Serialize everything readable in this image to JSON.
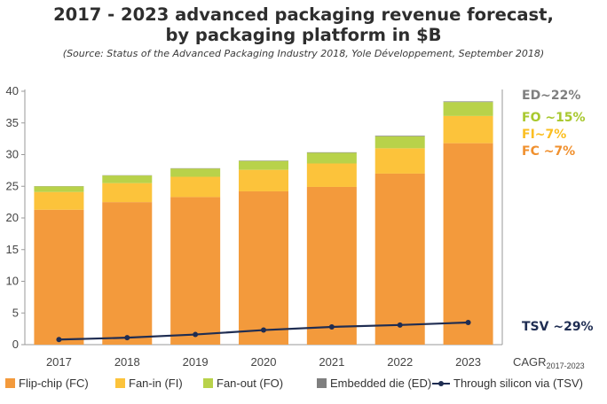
{
  "header": {
    "title_line1": "2017 - 2023 advanced packaging revenue forecast,",
    "title_line2": "by packaging platform in $B",
    "source": "(Source: Status of the Advanced Packaging Industry 2018, Yole Développement, September 2018)"
  },
  "chart_data": {
    "type": "bar",
    "stacked": true,
    "categories": [
      "2017",
      "2018",
      "2019",
      "2020",
      "2021",
      "2022",
      "2023"
    ],
    "ylim": [
      0,
      40
    ],
    "yticks": [
      "0",
      "5",
      "10",
      "15",
      "20",
      "25",
      "30",
      "35",
      "40"
    ],
    "grid": false,
    "xlabel_extra": {
      "text": "CAGR",
      "subscript": "2017-2023"
    },
    "series": [
      {
        "name": "Flip-chip (FC)",
        "kind": "bar",
        "color": "#F39A3C",
        "values": [
          21.3,
          22.5,
          23.3,
          24.2,
          24.9,
          27.0,
          31.8
        ]
      },
      {
        "name": "Fan-in (FI)",
        "kind": "bar",
        "color": "#FCC33B",
        "values": [
          2.8,
          3.0,
          3.2,
          3.4,
          3.7,
          4.0,
          4.3
        ]
      },
      {
        "name": "Fan-out (FO)",
        "kind": "bar",
        "color": "#B8D24A",
        "values": [
          0.9,
          1.2,
          1.3,
          1.4,
          1.7,
          1.9,
          2.2
        ]
      },
      {
        "name": "Embedded die (ED)",
        "kind": "bar",
        "color": "#7F7F7F",
        "values": [
          0.03,
          0.04,
          0.05,
          0.06,
          0.07,
          0.09,
          0.1
        ]
      },
      {
        "name": "Through silicon via (TSV)",
        "kind": "line",
        "color": "#1F2D52",
        "values": [
          0.8,
          1.1,
          1.6,
          2.3,
          2.8,
          3.1,
          3.5
        ]
      }
    ],
    "cagr_labels": [
      {
        "text": "ED~22%",
        "color": "#7F7F7F"
      },
      {
        "text": "FO ~15%",
        "color": "#A8C82E"
      },
      {
        "text": "FI~7%",
        "color": "#FBBF22"
      },
      {
        "text": "FC ~7%",
        "color": "#F0902E"
      },
      {
        "text": "TSV ~29%",
        "color": "#1F2D52"
      }
    ]
  }
}
